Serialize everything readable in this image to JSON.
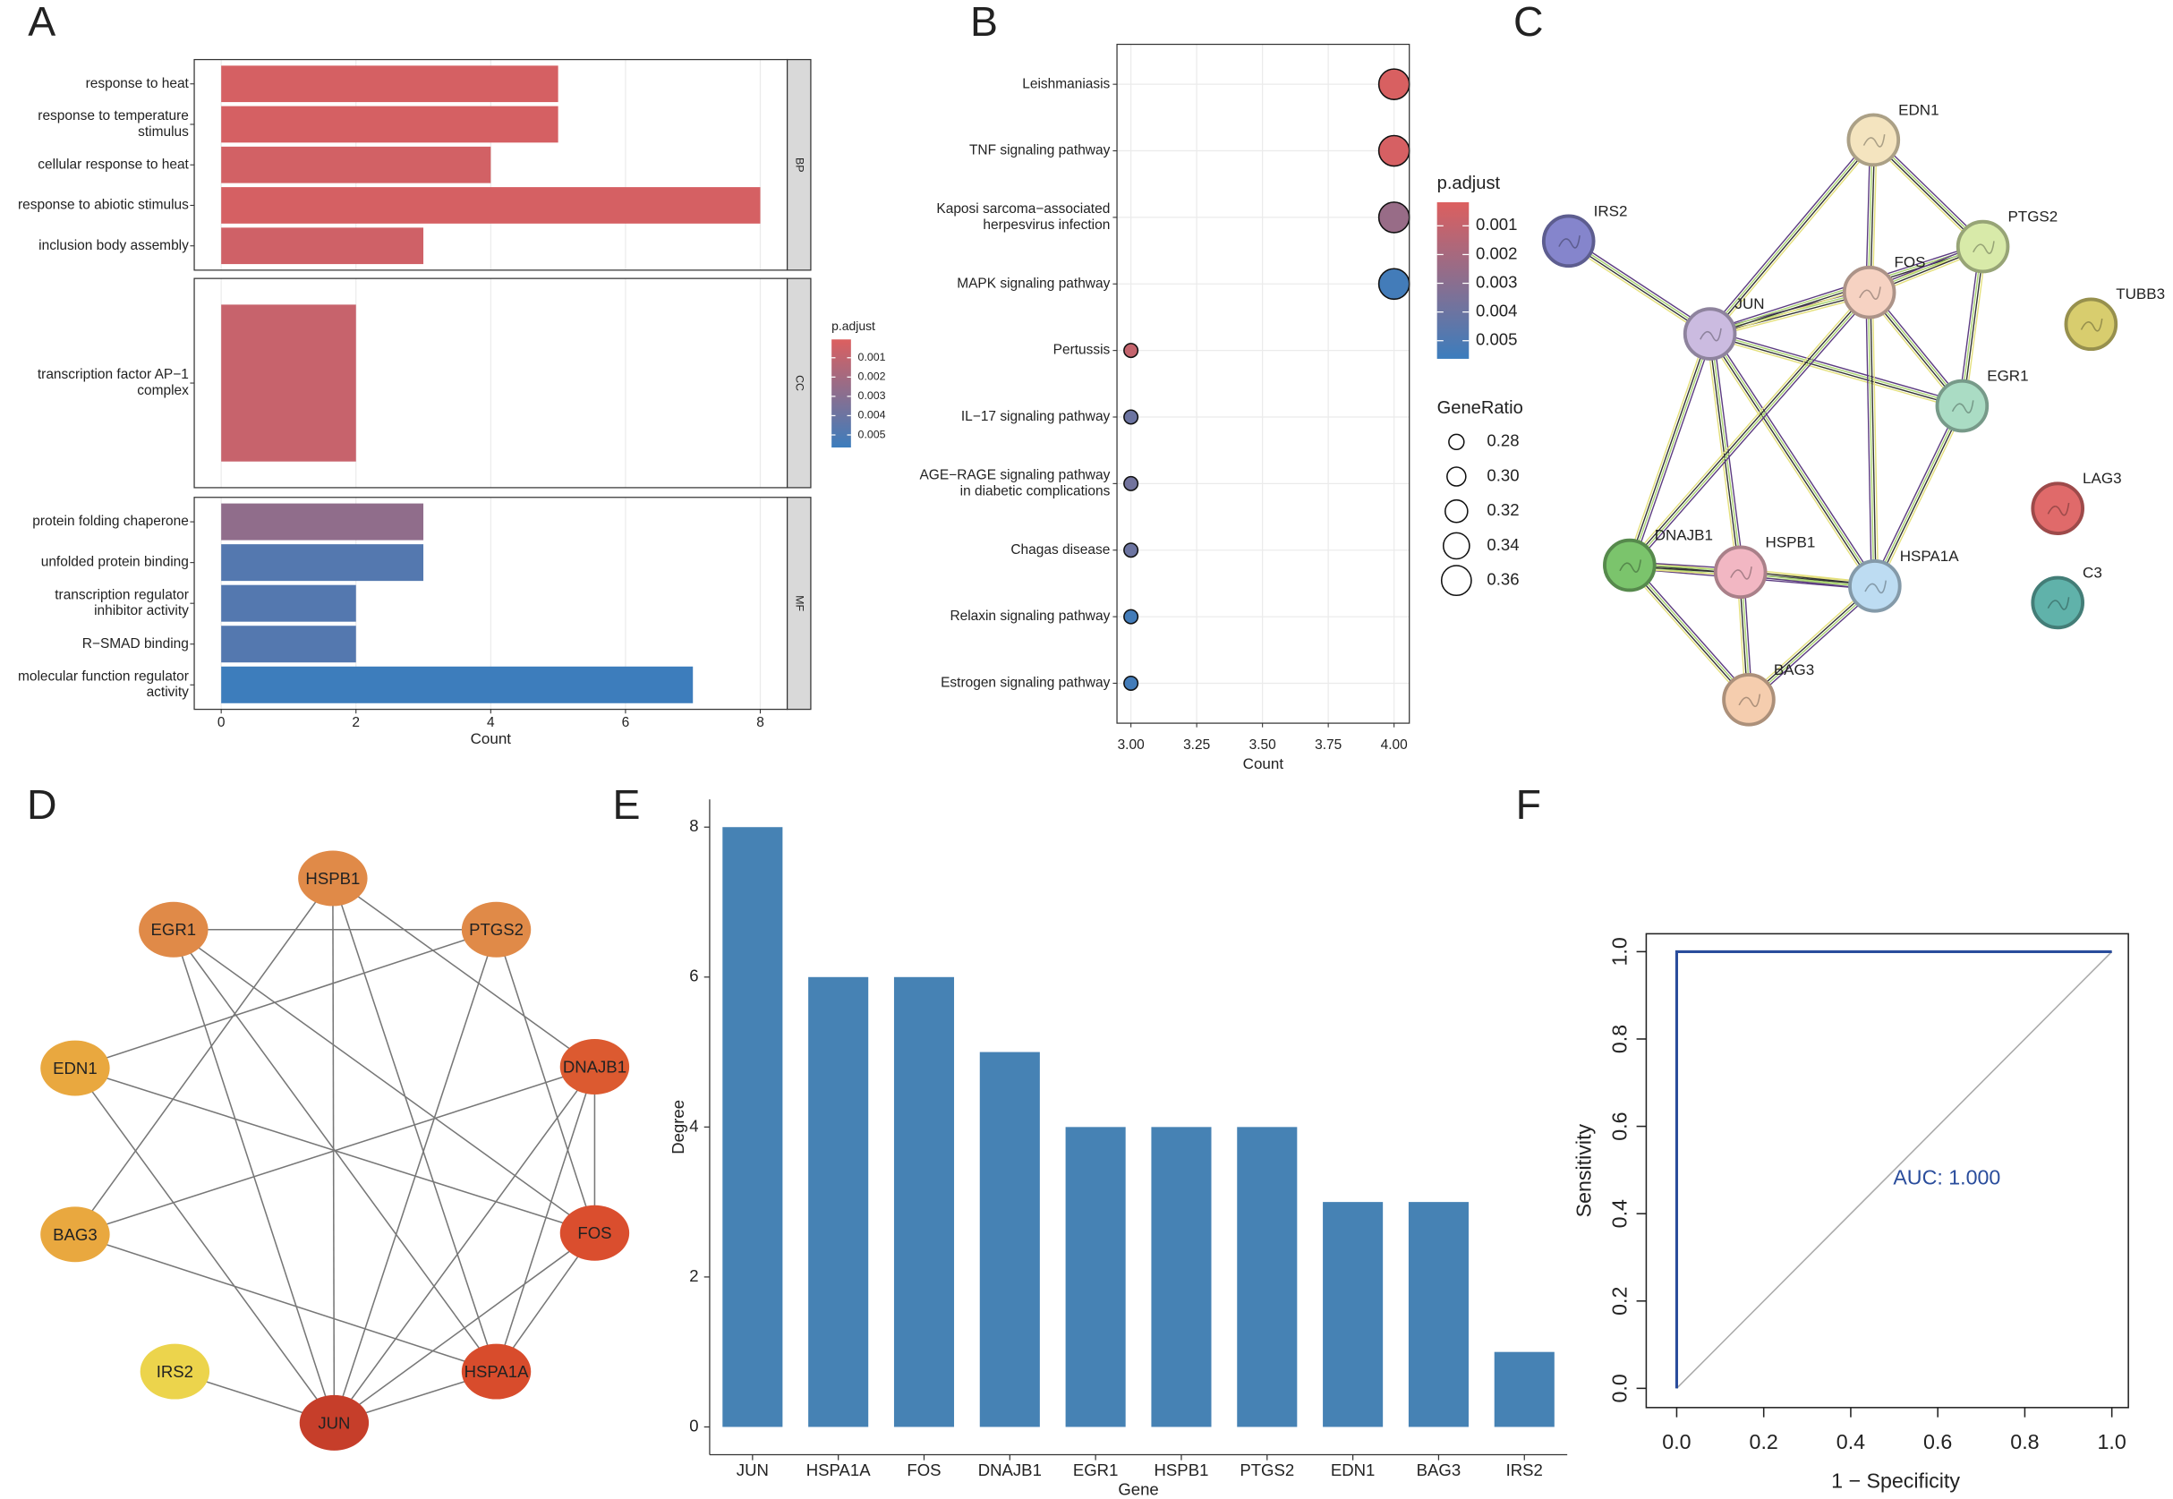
{
  "chart_data": [
    {
      "type": "bar",
      "panel": "A",
      "facets": [
        {
          "name": "BP",
          "categories": [
            "response to heat",
            "response to temperature\nstimulus",
            "cellular response to heat",
            "response to abiotic stimulus",
            "inclusion body assembly"
          ],
          "values": [
            5,
            5,
            4,
            8,
            3
          ],
          "p_adjust": [
            0.0003,
            0.0003,
            0.0004,
            0.0003,
            0.0005
          ]
        },
        {
          "name": "CC",
          "categories": [
            "transcription factor AP−1\ncomplex"
          ],
          "values": [
            2
          ],
          "p_adjust": [
            0.0008
          ]
        },
        {
          "name": "MF",
          "categories": [
            "protein folding chaperone",
            "unfolded protein binding",
            "transcription regulator\ninhibitor activity",
            "R−SMAD binding",
            "molecular function regulator\nactivity"
          ],
          "values": [
            3,
            3,
            2,
            2,
            7
          ],
          "p_adjust": [
            0.0027,
            0.0048,
            0.0048,
            0.0048,
            0.0056
          ]
        }
      ],
      "xlabel": "Count",
      "xlim": [
        -0.4,
        8.4
      ],
      "xticks": [
        0,
        2,
        4,
        6,
        8
      ],
      "grid": true,
      "legend_title": "p.adjust",
      "colorscale": [
        "#dc5f5f",
        "#3c7dbd"
      ],
      "colorlim": [
        5e-05,
        0.00565
      ],
      "colorticks": [
        0.001,
        0.002,
        0.003,
        0.004,
        0.005
      ]
    },
    {
      "type": "dot",
      "panel": "B",
      "categories": [
        "Leishmaniasis",
        "TNF signaling pathway",
        "Kaposi sarcoma−associated\nherpesvirus infection",
        "MAPK signaling pathway",
        "Pertussis",
        "IL−17 signaling pathway",
        "AGE−RAGE signaling pathway\nin diabetic complications",
        "Chagas disease",
        "Relaxin signaling pathway",
        "Estrogen signaling pathway"
      ],
      "values": [
        4,
        4,
        4,
        4,
        3,
        3,
        3,
        3,
        3,
        3
      ],
      "gene_ratio": [
        0.364,
        0.364,
        0.364,
        0.364,
        0.273,
        0.273,
        0.273,
        0.273,
        0.273,
        0.273
      ],
      "p_adjust": [
        0.0003,
        0.0004,
        0.0025,
        0.0054,
        0.001,
        0.004,
        0.0038,
        0.004,
        0.0054,
        0.0054
      ],
      "xlabel": "Count",
      "xlim": [
        2.947,
        4.058
      ],
      "xticks": [
        {
          "value": 3,
          "label": "3.00"
        },
        {
          "value": 3.25,
          "label": "3.25"
        },
        {
          "value": 3.5,
          "label": "3.50"
        },
        {
          "value": 3.75,
          "label": "3.75"
        },
        {
          "value": 4,
          "label": "4.00"
        }
      ],
      "grid": true,
      "legend_title": "p.adjust",
      "colorscale": [
        "#dc5f5f",
        "#3c7dbd"
      ],
      "colorlim": [
        0.00018,
        0.00563
      ],
      "colorticks": [
        0.001,
        0.002,
        0.003,
        0.004,
        0.005
      ],
      "size_title": "GeneRatio",
      "size_ticks": [
        0.28,
        {
          "value": 0.3,
          "label": "0.30"
        },
        0.32,
        0.34,
        0.36
      ]
    },
    {
      "type": "network",
      "panel": "C",
      "nodes": [
        {
          "label": "EDN1",
          "color": "#f4e4bf"
        },
        {
          "label": "PTGS2",
          "color": "#d8eaa9"
        },
        {
          "label": "IRS2",
          "color": "#8585cc"
        },
        {
          "label": "FOS",
          "color": "#f6d2c2"
        },
        {
          "label": "JUN",
          "color": "#cbbbe0"
        },
        {
          "label": "TUBB3",
          "color": "#d8cd6e"
        },
        {
          "label": "EGR1",
          "color": "#aadcc4"
        },
        {
          "label": "LAG3",
          "color": "#e06a6a"
        },
        {
          "label": "C3",
          "color": "#60b2aa"
        },
        {
          "label": "DNAJB1",
          "color": "#7bc46c"
        },
        {
          "label": "HSPB1",
          "color": "#f2b7c3"
        },
        {
          "label": "HSPA1A",
          "color": "#bddcf2"
        },
        {
          "label": "BAG3",
          "color": "#f5cdae"
        }
      ],
      "edges": [
        [
          "IRS2",
          "JUN"
        ],
        [
          "JUN",
          "HSPA1A"
        ],
        [
          "JUN",
          "FOS"
        ],
        [
          "JUN",
          "DNAJB1"
        ],
        [
          "JUN",
          "EGR1"
        ],
        [
          "JUN",
          "HSPB1"
        ],
        [
          "JUN",
          "PTGS2"
        ],
        [
          "JUN",
          "EDN1"
        ],
        [
          "HSPA1A",
          "BAG3"
        ],
        [
          "HSPA1A",
          "FOS"
        ],
        [
          "HSPA1A",
          "DNAJB1"
        ],
        [
          "HSPA1A",
          "EGR1"
        ],
        [
          "HSPA1A",
          "HSPB1"
        ],
        [
          "FOS",
          "EDN1"
        ],
        [
          "FOS",
          "EGR1"
        ],
        [
          "FOS",
          "DNAJB1"
        ],
        [
          "FOS",
          "PTGS2"
        ],
        [
          "DNAJB1",
          "BAG3"
        ],
        [
          "DNAJB1",
          "HSPB1"
        ],
        [
          "HSPB1",
          "BAG3"
        ],
        [
          "EDN1",
          "PTGS2"
        ],
        [
          "EGR1",
          "PTGS2"
        ]
      ]
    },
    {
      "type": "network",
      "panel": "D",
      "nodes": [
        {
          "label": "HSPB1",
          "color": "#e08a48"
        },
        {
          "label": "PTGS2",
          "color": "#e08a48"
        },
        {
          "label": "DNAJB1",
          "color": "#dc5a30"
        },
        {
          "label": "FOS",
          "color": "#da4e2e"
        },
        {
          "label": "HSPA1A",
          "color": "#d84c2c"
        },
        {
          "label": "JUN",
          "color": "#c63e2a"
        },
        {
          "label": "IRS2",
          "color": "#ecd44c"
        },
        {
          "label": "BAG3",
          "color": "#e9a83f"
        },
        {
          "label": "EDN1",
          "color": "#e9a83f"
        },
        {
          "label": "EGR1",
          "color": "#e08a48"
        }
      ],
      "edges": [
        [
          "IRS2",
          "JUN"
        ],
        [
          "JUN",
          "HSPA1A"
        ],
        [
          "JUN",
          "FOS"
        ],
        [
          "JUN",
          "DNAJB1"
        ],
        [
          "JUN",
          "EGR1"
        ],
        [
          "JUN",
          "HSPB1"
        ],
        [
          "JUN",
          "PTGS2"
        ],
        [
          "JUN",
          "EDN1"
        ],
        [
          "HSPA1A",
          "BAG3"
        ],
        [
          "HSPA1A",
          "FOS"
        ],
        [
          "HSPA1A",
          "DNAJB1"
        ],
        [
          "HSPA1A",
          "EGR1"
        ],
        [
          "HSPA1A",
          "HSPB1"
        ],
        [
          "FOS",
          "EDN1"
        ],
        [
          "FOS",
          "EGR1"
        ],
        [
          "FOS",
          "DNAJB1"
        ],
        [
          "FOS",
          "PTGS2"
        ],
        [
          "DNAJB1",
          "BAG3"
        ],
        [
          "DNAJB1",
          "HSPB1"
        ],
        [
          "HSPB1",
          "BAG3"
        ],
        [
          "EDN1",
          "PTGS2"
        ],
        [
          "EGR1",
          "PTGS2"
        ]
      ]
    },
    {
      "type": "bar",
      "panel": "E",
      "categories": [
        "JUN",
        "HSPA1A",
        "FOS",
        "DNAJB1",
        "EGR1",
        "HSPB1",
        "PTGS2",
        "EDN1",
        "BAG3",
        "IRS2"
      ],
      "values": [
        8,
        6,
        6,
        5,
        4,
        4,
        4,
        3,
        3,
        1
      ],
      "color": "#4682b4",
      "xlabel": "Gene",
      "ylabel": "Degree",
      "ylim": [
        -0.37,
        8.37
      ],
      "yticks": [
        0,
        2,
        4,
        6,
        8
      ]
    },
    {
      "type": "roc",
      "panel": "F",
      "x": [
        0,
        0,
        1
      ],
      "y": [
        0,
        1,
        1
      ],
      "color": "#2a4d9c",
      "reference": {
        "x": [
          0,
          1
        ],
        "y": [
          0,
          1
        ]
      },
      "annotation": "AUC: 1.000",
      "xlabel": "1 − Specificity",
      "ylabel": "Sensitivity",
      "xlim": [
        -0.07,
        1.038
      ],
      "ylim": [
        -0.044,
        1.041
      ],
      "xticks": [
        {
          "value": 0,
          "label": "0.0"
        },
        {
          "value": 0.2,
          "label": "0.2"
        },
        {
          "value": 0.4,
          "label": "0.4"
        },
        {
          "value": 0.6,
          "label": "0.6"
        },
        {
          "value": 0.8,
          "label": "0.8"
        },
        {
          "value": 1,
          "label": "1.0"
        }
      ],
      "yticks": [
        {
          "value": 0,
          "label": "0.0"
        },
        {
          "value": 0.2,
          "label": "0.2"
        },
        {
          "value": 0.4,
          "label": "0.4"
        },
        {
          "value": 0.6,
          "label": "0.6"
        },
        {
          "value": 0.8,
          "label": "0.8"
        },
        {
          "value": 1,
          "label": "1.0"
        }
      ]
    }
  ]
}
